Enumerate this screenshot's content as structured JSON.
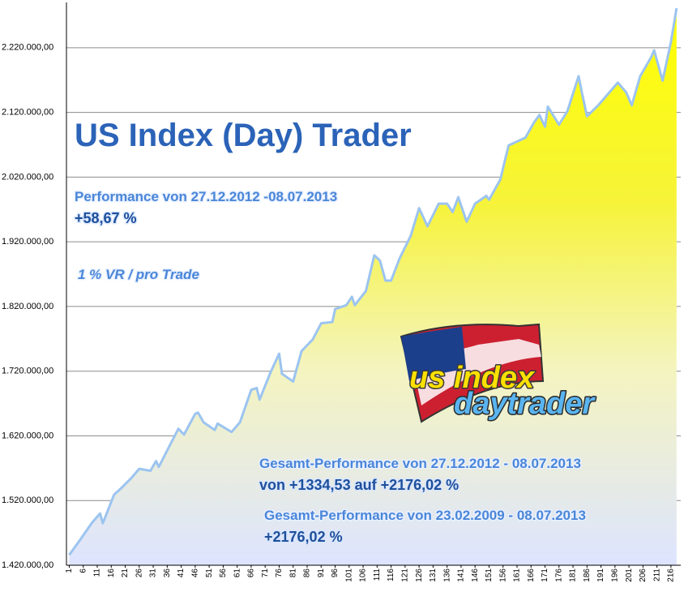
{
  "chart_data": {
    "type": "area",
    "title": "US Index (Day) Trader",
    "annotations": [
      "Performance  von  27.12.2012 -08.07.2013",
      "+58,67  %",
      "1 % VR / pro Trade",
      "Gesamt-Performance  von  27.12.2012 - 08.07.2013",
      "von +1334,53 auf +2176,02 %",
      "Gesamt-Performance  von  23.02.2009 - 08.07.2013",
      "+2176,02 %",
      "us index",
      "daytrader"
    ],
    "series": [
      {
        "color": "#ffff00",
        "x": [
          1,
          5,
          9,
          12,
          13,
          17,
          20,
          23,
          26,
          30,
          32,
          33,
          37,
          40,
          42,
          46,
          47,
          49,
          53,
          54,
          59,
          62,
          66,
          68,
          69,
          73,
          76,
          77,
          81,
          84,
          88,
          91,
          95,
          96,
          100,
          102,
          103,
          107,
          110,
          112,
          114,
          116,
          119,
          123,
          126,
          129,
          133,
          136,
          138,
          140,
          143,
          146,
          150,
          151,
          155,
          158,
          164,
          167,
          169,
          171,
          172,
          176,
          179,
          183,
          184,
          186,
          190,
          197,
          200,
          202,
          205,
          209,
          210,
          213,
          216,
          218
        ],
        "values": [
          1436000,
          1460000,
          1485000,
          1500000,
          1485000,
          1529000,
          1541000,
          1554000,
          1569000,
          1566000,
          1581000,
          1572000,
          1606000,
          1631000,
          1622000,
          1654000,
          1656000,
          1641000,
          1629000,
          1639000,
          1626000,
          1641000,
          1691000,
          1694000,
          1676000,
          1719000,
          1747000,
          1716000,
          1704000,
          1751000,
          1769000,
          1794000,
          1796000,
          1816000,
          1822000,
          1835000,
          1822000,
          1844000,
          1899000,
          1891000,
          1860000,
          1860000,
          1894000,
          1929000,
          1972000,
          1944000,
          1979000,
          1979000,
          1966000,
          1989000,
          1951000,
          1979000,
          1991000,
          1985000,
          2016000,
          2069000,
          2081000,
          2104000,
          2116000,
          2098000,
          2129000,
          2101000,
          2122000,
          2176000,
          2154000,
          2114000,
          2131000,
          2166000,
          2151000,
          2131000,
          2176000,
          2206000,
          2216000,
          2169000,
          2229000,
          2281000
        ]
      }
    ],
    "xlim": [
      0,
      219.5
    ],
    "xticks": [
      1,
      6,
      11,
      16,
      21,
      26,
      31,
      36,
      41,
      46,
      51,
      56,
      61,
      66,
      71,
      76,
      81,
      86,
      91,
      96,
      101,
      106,
      111,
      116,
      121,
      126,
      131,
      136,
      141,
      146,
      151,
      156,
      161,
      166,
      171,
      176,
      181,
      186,
      191,
      196,
      201,
      206,
      211,
      216
    ],
    "ylim": [
      1420000,
      2290000
    ],
    "yticks": [
      {
        "value": 1420000,
        "label": "1.420.000,00"
      },
      {
        "value": 1520000,
        "label": "1.520.000,00"
      },
      {
        "value": 1620000,
        "label": "1.620.000,00"
      },
      {
        "value": 1720000,
        "label": "1.720.000,00"
      },
      {
        "value": 1820000,
        "label": "1.820.000,00"
      },
      {
        "value": 1920000,
        "label": "1.920.000,00"
      },
      {
        "value": 2020000,
        "label": "2.020.000,00"
      },
      {
        "value": 2120000,
        "label": "2.120.000,00"
      },
      {
        "value": 2220000,
        "label": "2.220.000,00"
      }
    ],
    "grid": true
  }
}
